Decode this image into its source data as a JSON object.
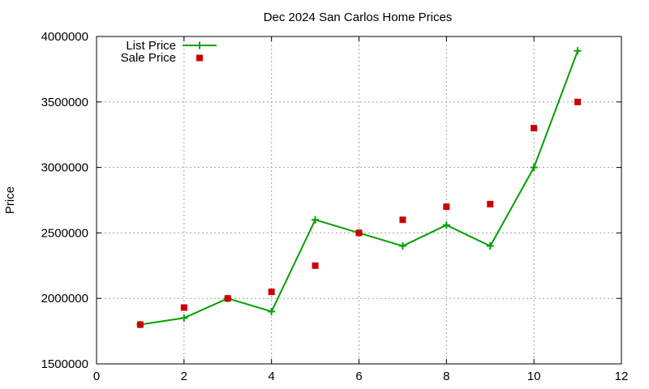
{
  "chart_data": {
    "type": "line",
    "title": "Dec 2024 San Carlos Home Prices",
    "xlabel": "",
    "ylabel": "Price",
    "xlim": [
      0,
      12
    ],
    "ylim": [
      1500000,
      4000000
    ],
    "x_ticks": [
      0,
      2,
      4,
      6,
      8,
      10,
      12
    ],
    "y_ticks": [
      1500000,
      2000000,
      2500000,
      3000000,
      3500000,
      4000000
    ],
    "x_tick_labels": [
      "0",
      "2",
      "4",
      "6",
      "8",
      "10",
      "12"
    ],
    "y_tick_labels": [
      "1500000",
      "2000000",
      "2500000",
      "3000000",
      "3500000",
      "4000000"
    ],
    "grid": true,
    "legend_position": "top-left",
    "series": [
      {
        "name": "List Price",
        "style": "line-with-plus-markers",
        "color": "#00a000",
        "x": [
          1,
          2,
          3,
          4,
          5,
          6,
          7,
          8,
          9,
          10,
          11
        ],
        "y": [
          1800000,
          1850000,
          2000000,
          1900000,
          2600000,
          2500000,
          2400000,
          2560000,
          2400000,
          3000000,
          3890000
        ]
      },
      {
        "name": "Sale Price",
        "style": "square-markers",
        "color": "#cc0000",
        "x": [
          1,
          2,
          3,
          4,
          5,
          6,
          7,
          8,
          9,
          10,
          11
        ],
        "y": [
          1800000,
          1930000,
          2000000,
          2050000,
          2250000,
          2500000,
          2600000,
          2700000,
          2720000,
          3300000,
          3500000
        ]
      }
    ]
  }
}
